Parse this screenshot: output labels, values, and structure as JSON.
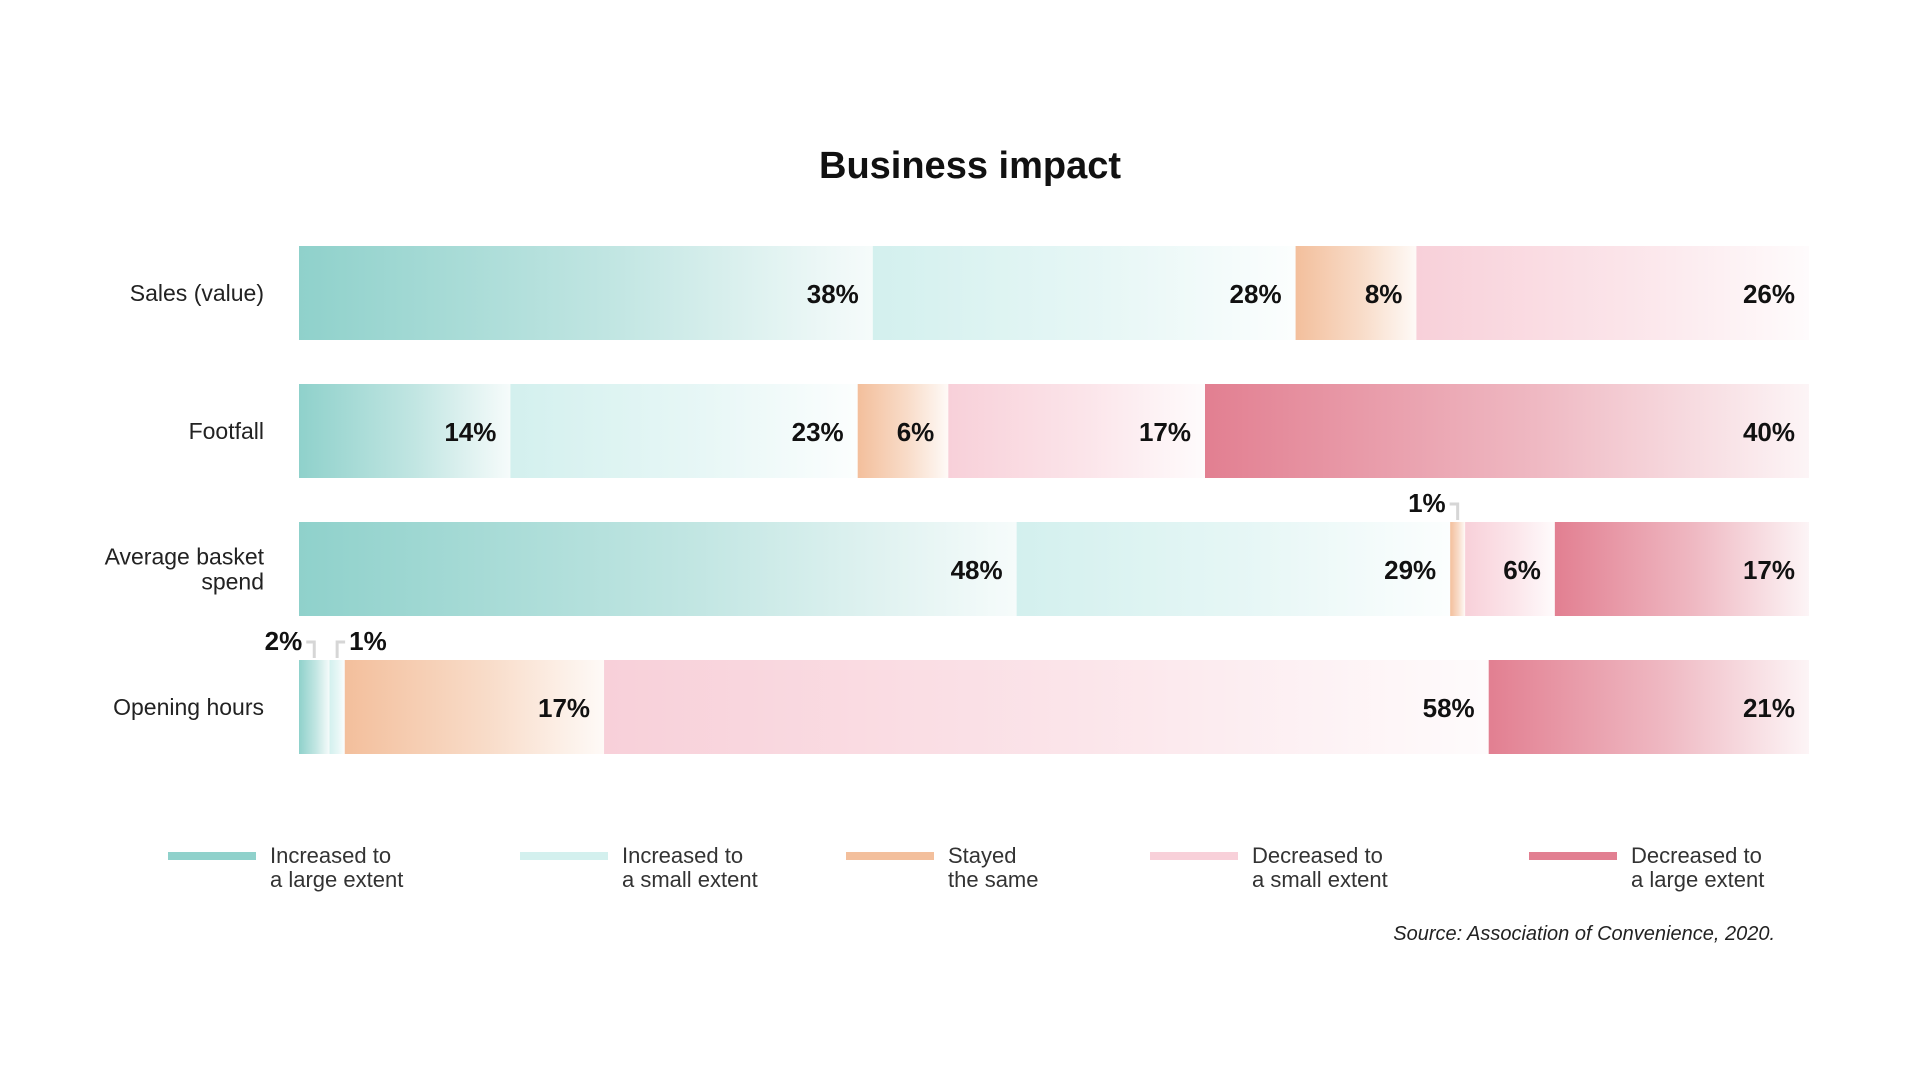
{
  "chart_data": {
    "type": "bar",
    "orientation": "horizontal",
    "stacked": true,
    "title": "Business impact",
    "xlabel": "",
    "ylabel": "",
    "grid": false,
    "legend_position": "bottom",
    "categories": [
      "Sales (value)",
      "Footfall",
      "Average basket spend",
      "Opening hours"
    ],
    "category_lines": [
      [
        "Sales (value)"
      ],
      [
        "Footfall"
      ],
      [
        "Average basket",
        "spend"
      ],
      [
        "Opening hours"
      ]
    ],
    "series": [
      {
        "name": "Increased to a large extent",
        "name_lines": [
          "Increased to",
          "a large extent"
        ],
        "color": "#8fd1cb",
        "values": [
          38,
          14,
          48,
          2
        ]
      },
      {
        "name": "Increased to a small extent",
        "name_lines": [
          "Increased to",
          "a small extent"
        ],
        "color": "#d3f0ee",
        "values": [
          28,
          23,
          29,
          1
        ]
      },
      {
        "name": "Stayed the same",
        "name_lines": [
          "Stayed",
          "the same"
        ],
        "color": "#f3bf9c",
        "values": [
          8,
          6,
          1,
          17
        ]
      },
      {
        "name": "Decreased to a small extent",
        "name_lines": [
          "Decreased to",
          "a small extent"
        ],
        "color": "#f8d0d9",
        "values": [
          26,
          17,
          6,
          58
        ]
      },
      {
        "name": "Decreased to a large extent",
        "name_lines": [
          "Decreased to",
          "a large extent"
        ],
        "color": "#e27f91",
        "values": [
          0,
          40,
          17,
          21
        ]
      }
    ],
    "value_suffix": "%",
    "source": "Source: Association of Convenience, 2020."
  }
}
